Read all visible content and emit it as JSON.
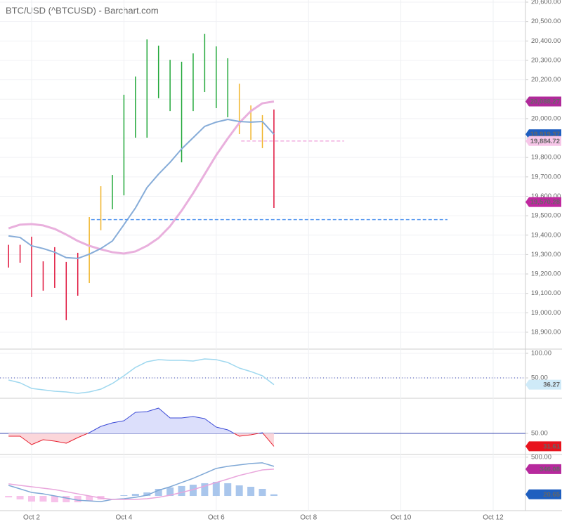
{
  "chart_data": [
    {
      "type": "ohlc",
      "title": "BTC/USD (^BTCUSD) - Barchart.com",
      "xlim": [
        1.315,
        12.7
      ],
      "ylim": [
        18813,
        20611
      ],
      "yticks": [
        {
          "value": 18900,
          "label": "18,900.00"
        },
        {
          "value": 19000,
          "label": "19,000.00"
        },
        {
          "value": 19100,
          "label": "19,100.00"
        },
        {
          "value": 19200,
          "label": "19,200.00"
        },
        {
          "value": 19300,
          "label": "19,300.00"
        },
        {
          "value": 19400,
          "label": "19,400.00"
        },
        {
          "value": 19500,
          "label": "19,500.00"
        },
        {
          "value": 19600,
          "label": "19,600.00"
        },
        {
          "value": 19700,
          "label": "19,700.00"
        },
        {
          "value": 19800,
          "label": "19,800.00"
        },
        {
          "value": 19900,
          "label": "19,900.00"
        },
        {
          "value": 20000,
          "label": "20,000.00"
        },
        {
          "value": 20100,
          "label": "20,100.00"
        },
        {
          "value": 20200,
          "label": "20,200.00"
        },
        {
          "value": 20300,
          "label": "20,300.00"
        },
        {
          "value": 20400,
          "label": "20,400.00"
        },
        {
          "value": 20500,
          "label": "20,500.00"
        },
        {
          "value": 20600,
          "label": "20,600.00"
        }
      ],
      "x": [
        1.5,
        1.75,
        2,
        2.25,
        2.5,
        2.75,
        3,
        3.25,
        3.5,
        3.75,
        4,
        4.25,
        4.5,
        4.75,
        5,
        5.25,
        5.5,
        5.75,
        6,
        6.25,
        6.5,
        6.75,
        7,
        7.25
      ],
      "high": [
        19350,
        19350,
        19392,
        19265,
        19338,
        19262,
        19309,
        19493,
        19652,
        19710,
        20123,
        20217,
        20408,
        20376,
        20303,
        20293,
        20336,
        20437,
        20372,
        20311,
        20180,
        20068,
        20018,
        20047
      ],
      "low": [
        19233,
        19258,
        19081,
        19114,
        19128,
        18962,
        19088,
        19153,
        19425,
        19533,
        19605,
        19902,
        19902,
        20105,
        20039,
        19775,
        20039,
        20137,
        20054,
        20007,
        19920,
        19891,
        19848,
        19540
      ],
      "bar_colors": [
        "#e0143c",
        "#e0143c",
        "#e0143c",
        "#e0143c",
        "#e0143c",
        "#e0143c",
        "#e0143c",
        "#f0b429",
        "#f0b429",
        "#22a83a",
        "#22a83a",
        "#22a83a",
        "#22a83a",
        "#22a83a",
        "#22a83a",
        "#22a83a",
        "#22a83a",
        "#22a83a",
        "#22a83a",
        "#22a83a",
        "#f0b429",
        "#f0b429",
        "#f0b429",
        "#e0143c"
      ],
      "series": [
        {
          "color": "#e9b0dd",
          "width": 3,
          "values": [
            19435,
            19454,
            19457,
            19450,
            19432,
            19403,
            19370,
            19345,
            19327,
            19312,
            19305,
            19316,
            19345,
            19385,
            19446,
            19526,
            19616,
            19714,
            19812,
            19898,
            19978,
            20039,
            20079,
            20088.27
          ]
        },
        {
          "color": "#86acd8",
          "width": 2,
          "values": [
            19396,
            19388,
            19345,
            19331,
            19312,
            19284,
            19280,
            19302,
            19331,
            19370,
            19454,
            19540,
            19645,
            19714,
            19775,
            19844,
            19902,
            19960,
            19982,
            19996,
            19985,
            19982,
            19985,
            19919.37
          ]
        }
      ],
      "levels": [
        {
          "value": 19480,
          "xrange": [
            3.29,
            11.01
          ],
          "color": "#5b9bf0"
        },
        {
          "value": 19884.72,
          "xrange": [
            6.54,
            8.77
          ],
          "color": "#f0a8de"
        }
      ],
      "last_labels": [
        {
          "value": 20088.27,
          "label": "20,088.27",
          "bg": "#b02a9a",
          "fg": "#ffffff"
        },
        {
          "value": 19919.37,
          "label": "19,919.37",
          "bg": "#1f5fbf",
          "fg": "#ffffff"
        },
        {
          "value": 19884.72,
          "label": "19,884.72",
          "bg": "#f7c6e8",
          "fg": "#c0399d"
        },
        {
          "value": 19570.28,
          "label": "19,570.28",
          "bg": "#c0289f",
          "fg": "#ffffff"
        }
      ]
    },
    {
      "type": "line",
      "xlim": [
        1.315,
        12.7
      ],
      "ylim": [
        10,
        108.6
      ],
      "yticks": [
        {
          "value": 100,
          "label": "100.00"
        },
        {
          "value": 50,
          "label": "50.00"
        }
      ],
      "reference_line": 50,
      "x": [
        1.5,
        1.75,
        2,
        2.25,
        2.5,
        2.75,
        3,
        3.25,
        3.5,
        3.75,
        4,
        4.25,
        4.5,
        4.75,
        5,
        5.25,
        5.5,
        5.75,
        6,
        6.25,
        6.5,
        6.75,
        7,
        7.25
      ],
      "series": [
        {
          "color": "#9fd8ef",
          "width": 1.5,
          "values": [
            45.7,
            40,
            28.6,
            25.7,
            22.9,
            21.4,
            18.6,
            21.4,
            27.1,
            38.6,
            54.3,
            71.4,
            82.9,
            87.1,
            85.7,
            85.7,
            84.3,
            88.6,
            87.1,
            81.4,
            70,
            62.9,
            54.3,
            36.27
          ]
        }
      ],
      "last_labels": [
        {
          "value": 36.27,
          "label": "36.27",
          "bg": "#cfeaf8",
          "fg": "#4aa6d6"
        }
      ]
    },
    {
      "type": "area",
      "xlim": [
        1.315,
        12.7
      ],
      "ylim": [
        22,
        100
      ],
      "yticks": [
        {
          "value": 50,
          "label": "50.00"
        }
      ],
      "baseline": 50,
      "above_color": "#3a49d6",
      "below_color": "#e8202f",
      "above_fill": "#dcdffb",
      "below_fill": "#fbd6da",
      "x": [
        1.5,
        1.75,
        2,
        2.25,
        2.5,
        2.75,
        3,
        3.25,
        3.5,
        3.75,
        4,
        4.25,
        4.5,
        4.75,
        5,
        5.25,
        5.5,
        5.75,
        6,
        6.25,
        6.5,
        6.75,
        7,
        7.25
      ],
      "series": [
        {
          "width": 1,
          "values": [
            46,
            46,
            34,
            41,
            39,
            36,
            44,
            51,
            60,
            65,
            68,
            80,
            81,
            86,
            72,
            72,
            74,
            71,
            59,
            55,
            46,
            48,
            51,
            31.61
          ]
        }
      ],
      "last_labels": [
        {
          "value": 31.61,
          "label": "31.61",
          "bg": "#e8141e",
          "fg": "#ffffff"
        }
      ]
    },
    {
      "type": "macd",
      "xlim": [
        1.315,
        12.7
      ],
      "ylim": [
        -190,
        535
      ],
      "yticks": [
        {
          "value": 500,
          "label": "500.00"
        }
      ],
      "xticks": [
        {
          "value": 2,
          "label": "Oct 2"
        },
        {
          "value": 4,
          "label": "Oct 4"
        },
        {
          "value": 6,
          "label": "Oct 6"
        },
        {
          "value": 8,
          "label": "Oct 8"
        },
        {
          "value": 10,
          "label": "Oct 10"
        },
        {
          "value": 12,
          "label": "Oct 12"
        }
      ],
      "x": [
        1.5,
        1.75,
        2,
        2.25,
        2.5,
        2.75,
        3,
        3.25,
        3.5,
        3.75,
        4,
        4.25,
        4.5,
        4.75,
        5,
        5.25,
        5.5,
        5.75,
        6,
        6.25,
        6.5,
        6.75,
        7,
        7.25
      ],
      "histogram": [
        -19,
        -45,
        -73,
        -73,
        -82,
        -82,
        -82,
        -64,
        -46,
        0,
        9,
        27,
        45,
        91,
        109,
        128,
        145,
        164,
        182,
        164,
        136,
        118,
        91,
        20.65
      ],
      "positive_color": "#a9c6ec",
      "negative_color": "#f7c2ea",
      "series": [
        {
          "color": "#7fa8d6",
          "width": 1.5,
          "values": [
            136,
            91,
            45,
            27,
            0,
            -27,
            -55,
            -64,
            -73,
            -45,
            -36,
            -18,
            9,
            73,
            118,
            173,
            227,
            291,
            355,
            382,
            400,
            418,
            427,
            382
          ]
        },
        {
          "color": "#e9a6dc",
          "width": 1.5,
          "values": [
            155,
            136,
            118,
            100,
            82,
            55,
            27,
            0,
            -27,
            -45,
            -45,
            -45,
            -36,
            -18,
            9,
            45,
            82,
            127,
            173,
            218,
            264,
            300,
            336,
            346.08
          ]
        }
      ],
      "last_labels": [
        {
          "value": 346.08,
          "label": "346.08",
          "bg": "#b7299d",
          "fg": "#ffffff"
        },
        {
          "value": 20.65,
          "label": "20.65",
          "bg": "#1f5fbf",
          "fg": "#ffffff"
        }
      ]
    }
  ]
}
